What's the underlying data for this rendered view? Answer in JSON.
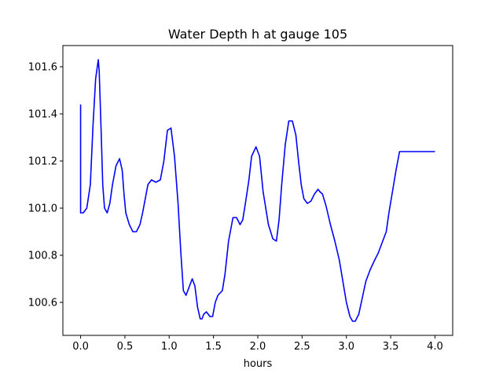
{
  "chart_data": {
    "type": "line",
    "title": "Water Depth h at gauge 105",
    "xlabel": "hours",
    "ylabel": "",
    "xlim": [
      -0.2,
      4.2
    ],
    "ylim": [
      100.46,
      101.69
    ],
    "xticks": [
      0.0,
      0.5,
      1.0,
      1.5,
      2.0,
      2.5,
      3.0,
      3.5,
      4.0
    ],
    "xtick_labels": [
      "0.0",
      "0.5",
      "1.0",
      "1.5",
      "2.0",
      "2.5",
      "3.0",
      "3.5",
      "4.0"
    ],
    "yticks": [
      100.6,
      100.8,
      101.0,
      101.2,
      101.4,
      101.6
    ],
    "ytick_labels": [
      "100.6",
      "100.8",
      "101.0",
      "101.2",
      "101.4",
      "101.6"
    ],
    "grid": false,
    "series": [
      {
        "color": "#0000ff",
        "x": [
          0.0,
          0.0,
          0.03,
          0.07,
          0.11,
          0.14,
          0.17,
          0.2,
          0.21,
          0.23,
          0.25,
          0.27,
          0.3,
          0.33,
          0.36,
          0.4,
          0.44,
          0.47,
          0.49,
          0.51,
          0.55,
          0.59,
          0.63,
          0.67,
          0.7,
          0.73,
          0.76,
          0.8,
          0.85,
          0.9,
          0.94,
          0.98,
          1.02,
          1.06,
          1.1,
          1.13,
          1.16,
          1.19,
          1.23,
          1.26,
          1.29,
          1.32,
          1.35,
          1.37,
          1.39,
          1.42,
          1.46,
          1.49,
          1.52,
          1.55,
          1.6,
          1.63,
          1.67,
          1.72,
          1.76,
          1.8,
          1.83,
          1.86,
          1.9,
          1.93,
          1.98,
          2.02,
          2.06,
          2.12,
          2.17,
          2.21,
          2.24,
          2.27,
          2.31,
          2.35,
          2.39,
          2.43,
          2.46,
          2.49,
          2.52,
          2.56,
          2.6,
          2.64,
          2.68,
          2.7,
          2.73,
          2.77,
          2.82,
          2.87,
          2.92,
          2.96,
          3.0,
          3.04,
          3.07,
          3.1,
          3.14,
          3.18,
          3.22,
          3.27,
          3.32,
          3.36,
          3.41,
          3.45,
          3.48,
          3.52,
          3.56,
          3.6,
          3.65,
          3.7,
          3.74,
          3.79,
          3.84,
          3.89,
          3.94,
          4.0
        ],
        "y": [
          101.44,
          100.98,
          100.98,
          101.0,
          101.1,
          101.35,
          101.55,
          101.63,
          101.58,
          101.35,
          101.1,
          101.0,
          100.98,
          101.02,
          101.1,
          101.18,
          101.21,
          101.16,
          101.06,
          100.98,
          100.93,
          100.9,
          100.9,
          100.93,
          100.98,
          101.04,
          101.1,
          101.12,
          101.11,
          101.12,
          101.2,
          101.33,
          101.34,
          101.22,
          101.02,
          100.82,
          100.65,
          100.63,
          100.67,
          100.7,
          100.67,
          100.58,
          100.53,
          100.53,
          100.55,
          100.56,
          100.54,
          100.54,
          100.6,
          100.63,
          100.65,
          100.72,
          100.86,
          100.96,
          100.96,
          100.93,
          100.95,
          101.02,
          101.12,
          101.22,
          101.26,
          101.22,
          101.07,
          100.93,
          100.87,
          100.86,
          100.95,
          101.1,
          101.27,
          101.37,
          101.37,
          101.31,
          101.2,
          101.1,
          101.04,
          101.02,
          101.03,
          101.06,
          101.08,
          101.07,
          101.06,
          101.01,
          100.93,
          100.86,
          100.78,
          100.69,
          100.6,
          100.54,
          100.52,
          100.52,
          100.55,
          100.62,
          100.69,
          100.74,
          100.78,
          100.81,
          100.86,
          100.9,
          100.98,
          101.07,
          101.16,
          101.24,
          101.24,
          101.24,
          101.24,
          101.24,
          101.24,
          101.24,
          101.24,
          101.24
        ]
      }
    ]
  }
}
